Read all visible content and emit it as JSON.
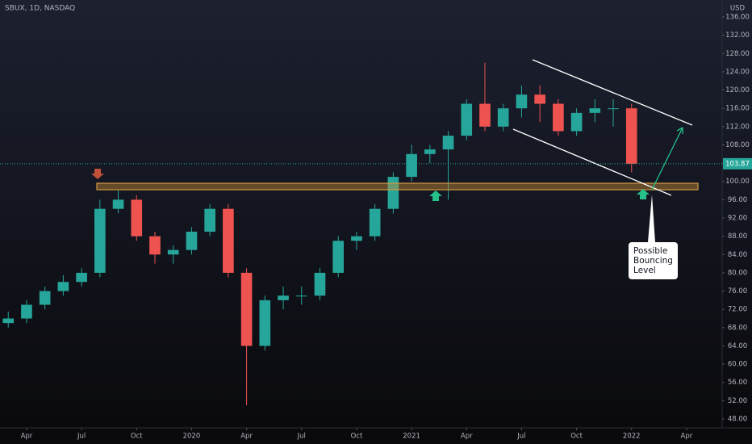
{
  "chart_data": {
    "type": "candlestick",
    "title": "SBUX, 1D, NASDAQ",
    "currency": "USD",
    "annotation": [
      "Possible",
      "Bouncing",
      "Level"
    ],
    "last_price": 103.87,
    "up_color": "#26a69a",
    "down_color": "#ef5350",
    "x": [
      2,
      3,
      4,
      5,
      6,
      7,
      8,
      9,
      10,
      11,
      12,
      13,
      14,
      15,
      16,
      17,
      18,
      19,
      20,
      21,
      22,
      23,
      24,
      25,
      26,
      27,
      28,
      29,
      30,
      31,
      32,
      33,
      34,
      35,
      36
    ],
    "open": [
      69,
      70,
      73,
      76,
      78,
      80,
      94,
      96,
      88,
      84,
      85,
      89,
      94,
      80,
      64,
      74,
      75,
      75,
      80,
      87,
      88,
      94,
      101,
      106,
      107,
      110,
      117,
      112,
      116,
      119,
      117,
      111,
      115,
      116,
      116
    ],
    "high": [
      71.5,
      74,
      77,
      79.5,
      81,
      96,
      98,
      97,
      89,
      86,
      90,
      95,
      95,
      81,
      75,
      77,
      77,
      81,
      88,
      89,
      95,
      102,
      108,
      108,
      111,
      118,
      126,
      117,
      121,
      121,
      118,
      116,
      118,
      118,
      117
    ],
    "low": [
      68,
      69,
      72,
      75,
      77,
      79,
      93,
      87,
      82,
      82,
      84,
      88,
      79,
      51,
      63,
      72,
      73,
      74,
      79,
      85,
      87,
      93,
      100,
      104,
      96,
      109,
      111,
      111,
      114,
      113,
      110,
      110,
      113,
      112,
      102
    ],
    "close": [
      70,
      73,
      76,
      78,
      80,
      94,
      96,
      88,
      84,
      85,
      89,
      94,
      80,
      64,
      74,
      75,
      75,
      80,
      87,
      88,
      94,
      101,
      106,
      107,
      110,
      117,
      112,
      116,
      119,
      117,
      111,
      115,
      116,
      116,
      103.87
    ],
    "xlim": [
      1.55,
      40.94
    ],
    "xticks": [
      {
        "value": 3,
        "label": "Apr"
      },
      {
        "value": 6,
        "label": "Jul"
      },
      {
        "value": 9,
        "label": "Oct"
      },
      {
        "value": 12,
        "label": "2020"
      },
      {
        "value": 15,
        "label": "Apr"
      },
      {
        "value": 18,
        "label": "Jul"
      },
      {
        "value": 21,
        "label": "Oct"
      },
      {
        "value": 24,
        "label": "2021"
      },
      {
        "value": 27,
        "label": "Apr"
      },
      {
        "value": 30,
        "label": "Jul"
      },
      {
        "value": 33,
        "label": "Oct"
      },
      {
        "value": 36,
        "label": "2022"
      },
      {
        "value": 39,
        "label": "Apr"
      }
    ],
    "ylim": [
      46.06,
      139.71
    ],
    "yticks": [
      {
        "value": 48,
        "label": "48.00"
      },
      {
        "value": 52,
        "label": "52.00"
      },
      {
        "value": 56,
        "label": "56.00"
      },
      {
        "value": 60,
        "label": "60.00"
      },
      {
        "value": 64,
        "label": "64.00"
      },
      {
        "value": 68,
        "label": "68.00"
      },
      {
        "value": 72,
        "label": "72.00"
      },
      {
        "value": 76,
        "label": "76.00"
      },
      {
        "value": 80,
        "label": "80.00"
      },
      {
        "value": 84,
        "label": "84.00"
      },
      {
        "value": 88,
        "label": "88.00"
      },
      {
        "value": 92,
        "label": "92.00"
      },
      {
        "value": 96,
        "label": "96.00"
      },
      {
        "value": 100,
        "label": "100.00"
      },
      {
        "value": 104,
        "label": "104.00"
      },
      {
        "value": 108,
        "label": "108.00"
      },
      {
        "value": 112,
        "label": "112.00"
      },
      {
        "value": 116,
        "label": "116.00"
      },
      {
        "value": 120,
        "label": "120.00"
      },
      {
        "value": 124,
        "label": "124.00"
      },
      {
        "value": 128,
        "label": "128.00"
      },
      {
        "value": 132,
        "label": "132.00"
      },
      {
        "value": 136,
        "label": "136.00"
      }
    ]
  }
}
